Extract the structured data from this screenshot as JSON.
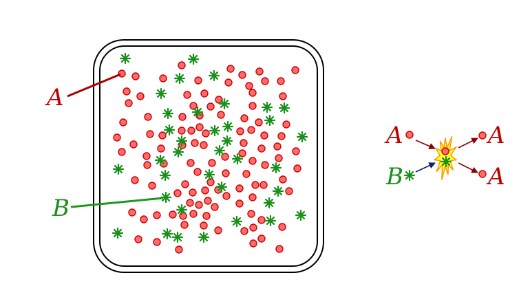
{
  "labels": {
    "box_a": "A",
    "box_b": "B",
    "rx_a_in": "A",
    "rx_b_in": "B",
    "rx_a_out_top": "A",
    "rx_a_out_bottom": "A"
  },
  "colors": {
    "species_a": "#cc0000",
    "species_a_fill": "#ff6b6b",
    "species_b": "#1a8f1a",
    "container": "#000000",
    "arrow_a": "#8b0000",
    "arrow_b": "#0b1f6b",
    "burst_fill": "#ffff33",
    "burst_stroke": "#ff9900"
  },
  "icons": {
    "particle_a": "red-circle-icon",
    "particle_b": "green-asterisk-icon",
    "reaction": "burst-icon"
  }
}
